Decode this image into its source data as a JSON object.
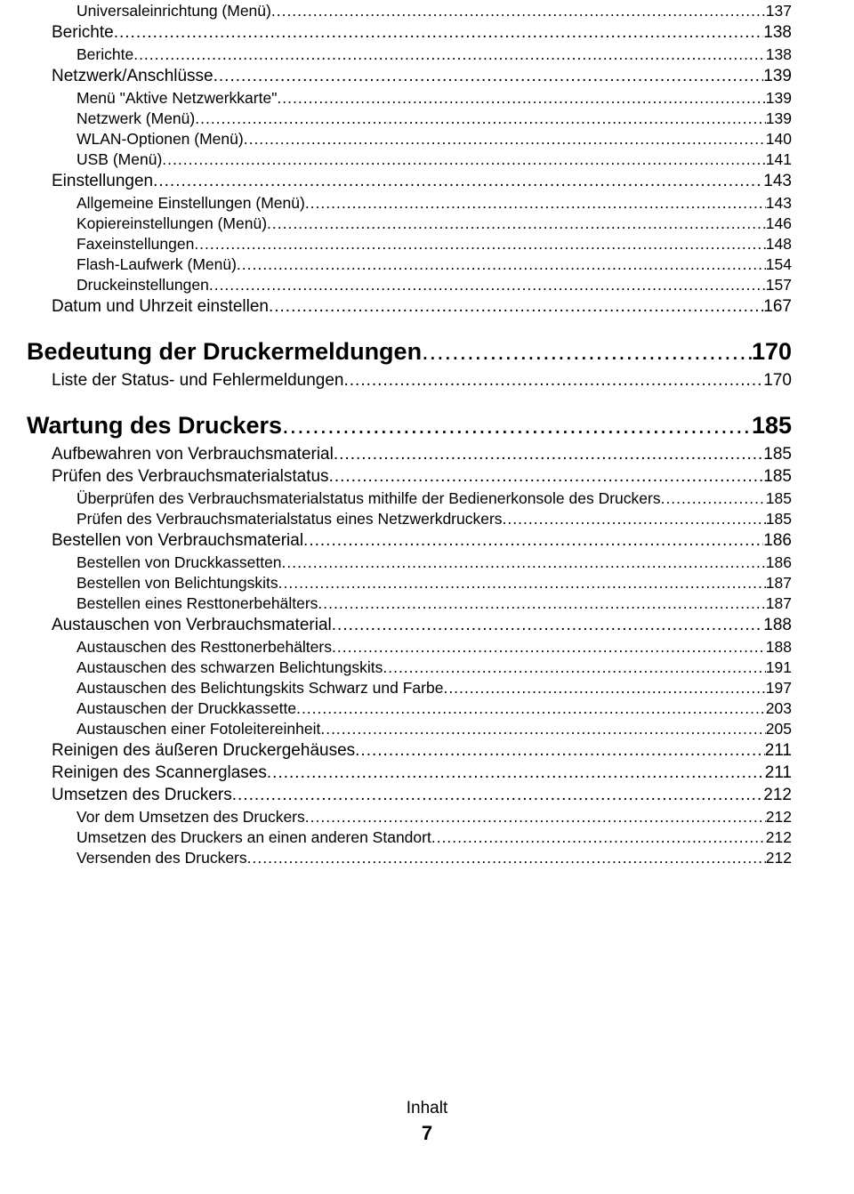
{
  "footer": {
    "label": "Inhalt",
    "page_num": "7"
  },
  "toc": [
    {
      "level": 2,
      "label": "Universaleinrichtung (Menü)",
      "page": "137"
    },
    {
      "level": 1,
      "label": "Berichte",
      "page": "138"
    },
    {
      "level": 2,
      "label": "Berichte",
      "page": "138"
    },
    {
      "level": 1,
      "label": "Netzwerk/Anschlüsse",
      "page": "139"
    },
    {
      "level": 2,
      "label": "Menü \"Aktive Netzwerkkarte\"",
      "page": "139"
    },
    {
      "level": 2,
      "label": "Netzwerk (Menü)",
      "page": "139"
    },
    {
      "level": 2,
      "label": "WLAN-Optionen (Menü)",
      "page": "140"
    },
    {
      "level": 2,
      "label": "USB (Menü)",
      "page": "141"
    },
    {
      "level": 1,
      "label": "Einstellungen",
      "page": "143"
    },
    {
      "level": 2,
      "label": "Allgemeine Einstellungen (Menü)",
      "page": "143"
    },
    {
      "level": 2,
      "label": "Kopiereinstellungen (Menü)",
      "page": "146"
    },
    {
      "level": 2,
      "label": "Faxeinstellungen",
      "page": "148"
    },
    {
      "level": 2,
      "label": "Flash-Laufwerk (Menü)",
      "page": "154"
    },
    {
      "level": 2,
      "label": "Druckeinstellungen",
      "page": "157"
    },
    {
      "level": 1,
      "label": "Datum und Uhrzeit einstellen",
      "page": "167"
    },
    {
      "level": 0,
      "label": "Bedeutung der Druckermeldungen",
      "page": "170"
    },
    {
      "level": 1,
      "label": "Liste der Status- und Fehlermeldungen",
      "page": "170"
    },
    {
      "level": 0,
      "label": "Wartung des Druckers",
      "page": "185"
    },
    {
      "level": 1,
      "label": "Aufbewahren von Verbrauchsmaterial",
      "page": "185"
    },
    {
      "level": 1,
      "label": "Prüfen des Verbrauchsmaterialstatus",
      "page": "185"
    },
    {
      "level": 2,
      "label": "Überprüfen des Verbrauchsmaterialstatus mithilfe der Bedienerkonsole des Druckers",
      "page": "185"
    },
    {
      "level": 2,
      "label": "Prüfen des Verbrauchsmaterialstatus eines Netzwerkdruckers",
      "page": "185"
    },
    {
      "level": 1,
      "label": "Bestellen von Verbrauchsmaterial",
      "page": "186"
    },
    {
      "level": 2,
      "label": "Bestellen von Druckkassetten",
      "page": "186"
    },
    {
      "level": 2,
      "label": "Bestellen von Belichtungskits",
      "page": "187"
    },
    {
      "level": 2,
      "label": "Bestellen eines Resttonerbehälters",
      "page": "187"
    },
    {
      "level": 1,
      "label": "Austauschen von Verbrauchsmaterial",
      "page": "188"
    },
    {
      "level": 2,
      "label": "Austauschen des Resttonerbehälters",
      "page": "188"
    },
    {
      "level": 2,
      "label": "Austauschen des schwarzen Belichtungskits",
      "page": "191"
    },
    {
      "level": 2,
      "label": "Austauschen des Belichtungskits Schwarz und Farbe",
      "page": "197"
    },
    {
      "level": 2,
      "label": "Austauschen der Druckkassette",
      "page": "203"
    },
    {
      "level": 2,
      "label": "Austauschen einer Fotoleitereinheit",
      "page": "205"
    },
    {
      "level": 1,
      "label": "Reinigen des äußeren Druckergehäuses",
      "page": "211"
    },
    {
      "level": 1,
      "label": "Reinigen des Scannerglases",
      "page": "211"
    },
    {
      "level": 1,
      "label": "Umsetzen des Druckers",
      "page": "212"
    },
    {
      "level": 2,
      "label": "Vor dem Umsetzen des Druckers",
      "page": "212"
    },
    {
      "level": 2,
      "label": "Umsetzen des Druckers an einen anderen Standort",
      "page": "212"
    },
    {
      "level": 2,
      "label": "Versenden des Druckers",
      "page": "212"
    }
  ]
}
